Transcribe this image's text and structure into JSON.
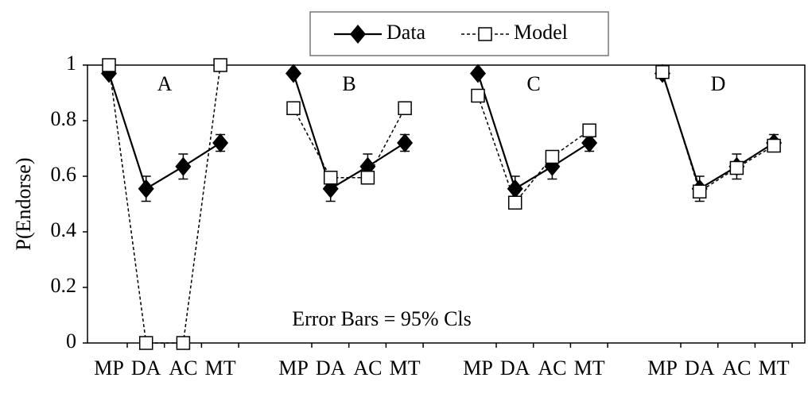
{
  "chart_data": {
    "type": "line",
    "panels": [
      "A",
      "B",
      "C",
      "D"
    ],
    "categories": [
      "MP",
      "DA",
      "AC",
      "MT",
      "MP",
      "DA",
      "AC",
      "MT",
      "MP",
      "DA",
      "AC",
      "MT",
      "MP",
      "DA",
      "AC",
      "MT"
    ],
    "series": [
      {
        "name": "Data",
        "color": "#000000",
        "dashed": false,
        "marker": "diamond",
        "values": [
          0.97,
          0.555,
          0.635,
          0.72,
          0.97,
          0.555,
          0.635,
          0.72,
          0.97,
          0.555,
          0.635,
          0.72,
          0.97,
          0.555,
          0.635,
          0.72
        ],
        "errors": [
          0.01,
          0.045,
          0.045,
          0.03,
          0.01,
          0.045,
          0.045,
          0.03,
          0.01,
          0.045,
          0.045,
          0.03,
          0.01,
          0.045,
          0.045,
          0.03
        ]
      },
      {
        "name": "Model",
        "color": "#000000",
        "dashed": true,
        "marker": "square",
        "values": [
          1,
          0,
          0,
          1,
          0.845,
          0.595,
          0.595,
          0.845,
          0.89,
          0.505,
          0.67,
          0.765,
          0.975,
          0.545,
          0.63,
          0.71
        ]
      }
    ],
    "ylabel": "P(Endorse)",
    "annotation": "Error Bars = 95% Cls",
    "ylim": [
      0,
      1
    ],
    "yticks": [
      0,
      0.2,
      0.4,
      0.6,
      0.8,
      1
    ]
  }
}
